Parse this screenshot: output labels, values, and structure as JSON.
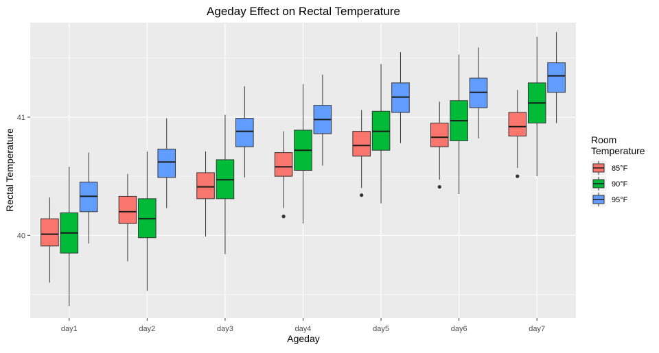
{
  "chart_data": {
    "type": "boxplot",
    "title": "Ageday Effect on Rectal Temperature",
    "xlabel": "Ageday",
    "ylabel": "Rectal Temperature",
    "categories": [
      "day1",
      "day2",
      "day3",
      "day4",
      "day5",
      "day6",
      "day7"
    ],
    "y_ticks": [
      40,
      41
    ],
    "ylim": [
      39.3,
      41.8
    ],
    "grid": true,
    "legend": {
      "title": "Room Temperature",
      "position": "right"
    },
    "series": [
      {
        "name": "85°F",
        "color": "#F8766D",
        "boxes": [
          {
            "min": 39.6,
            "q1": 39.91,
            "median": 40.01,
            "q3": 40.14,
            "max": 40.32,
            "outliers": []
          },
          {
            "min": 39.78,
            "q1": 40.1,
            "median": 40.2,
            "q3": 40.33,
            "max": 40.52,
            "outliers": []
          },
          {
            "min": 39.99,
            "q1": 40.31,
            "median": 40.41,
            "q3": 40.53,
            "max": 40.71,
            "outliers": []
          },
          {
            "min": 40.23,
            "q1": 40.5,
            "median": 40.58,
            "q3": 40.7,
            "max": 40.88,
            "outliers": [
              40.16
            ]
          },
          {
            "min": 40.4,
            "q1": 40.67,
            "median": 40.76,
            "q3": 40.88,
            "max": 41.06,
            "outliers": [
              40.34
            ]
          },
          {
            "min": 40.47,
            "q1": 40.75,
            "median": 40.83,
            "q3": 40.95,
            "max": 41.13,
            "outliers": [
              40.41
            ]
          },
          {
            "min": 40.57,
            "q1": 40.84,
            "median": 40.92,
            "q3": 41.04,
            "max": 41.23,
            "outliers": [
              40.5
            ]
          }
        ]
      },
      {
        "name": "90°F",
        "color": "#00BA38",
        "boxes": [
          {
            "min": 39.4,
            "q1": 39.85,
            "median": 40.02,
            "q3": 40.19,
            "max": 40.58,
            "outliers": []
          },
          {
            "min": 39.53,
            "q1": 39.98,
            "median": 40.14,
            "q3": 40.31,
            "max": 40.71,
            "outliers": []
          },
          {
            "min": 39.84,
            "q1": 40.31,
            "median": 40.47,
            "q3": 40.64,
            "max": 41.02,
            "outliers": []
          },
          {
            "min": 40.1,
            "q1": 40.55,
            "median": 40.72,
            "q3": 40.89,
            "max": 41.28,
            "outliers": []
          },
          {
            "min": 40.27,
            "q1": 40.72,
            "median": 40.88,
            "q3": 41.05,
            "max": 41.45,
            "outliers": []
          },
          {
            "min": 40.35,
            "q1": 40.8,
            "median": 40.97,
            "q3": 41.14,
            "max": 41.53,
            "outliers": []
          },
          {
            "min": 40.5,
            "q1": 40.95,
            "median": 41.12,
            "q3": 41.29,
            "max": 41.68,
            "outliers": []
          }
        ]
      },
      {
        "name": "95°F",
        "color": "#619CFF",
        "boxes": [
          {
            "min": 39.93,
            "q1": 40.2,
            "median": 40.33,
            "q3": 40.45,
            "max": 40.7,
            "outliers": []
          },
          {
            "min": 40.23,
            "q1": 40.49,
            "median": 40.62,
            "q3": 40.73,
            "max": 40.99,
            "outliers": []
          },
          {
            "min": 40.49,
            "q1": 40.75,
            "median": 40.88,
            "q3": 40.99,
            "max": 41.26,
            "outliers": []
          },
          {
            "min": 40.59,
            "q1": 40.86,
            "median": 40.98,
            "q3": 41.1,
            "max": 41.36,
            "outliers": []
          },
          {
            "min": 40.78,
            "q1": 41.04,
            "median": 41.17,
            "q3": 41.29,
            "max": 41.55,
            "outliers": []
          },
          {
            "min": 40.82,
            "q1": 41.08,
            "median": 41.21,
            "q3": 41.33,
            "max": 41.59,
            "outliers": []
          },
          {
            "min": 40.95,
            "q1": 41.21,
            "median": 41.35,
            "q3": 41.46,
            "max": 41.72,
            "outliers": []
          }
        ]
      }
    ]
  }
}
